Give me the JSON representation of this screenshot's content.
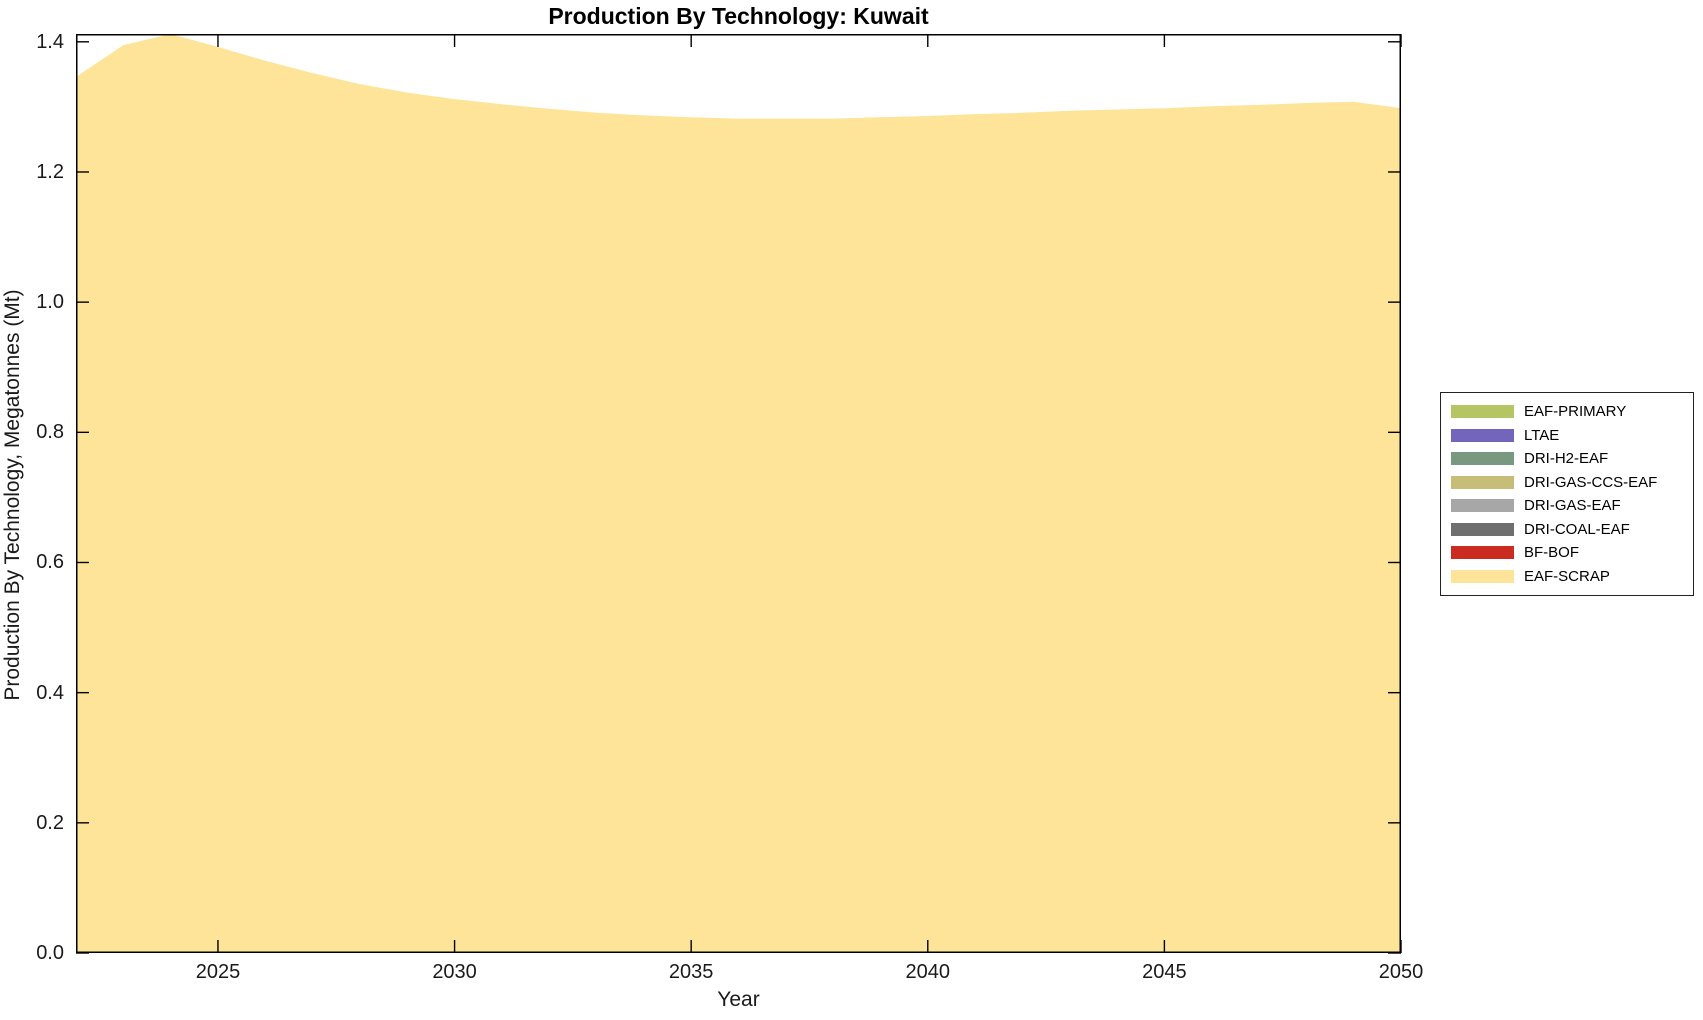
{
  "figure": {
    "title": "Production By Technology: Kuwait",
    "xlabel": "Year",
    "ylabel": "Production By Technology, Megatonnes (Mt)"
  },
  "chart_data": {
    "type": "area",
    "stacked": true,
    "title": "Production By Technology: Kuwait",
    "xlabel": "Year",
    "ylabel": "Production By Technology, Megatonnes (Mt)",
    "x": [
      2022,
      2023,
      2024,
      2025,
      2026,
      2027,
      2028,
      2029,
      2030,
      2031,
      2032,
      2033,
      2034,
      2035,
      2036,
      2037,
      2038,
      2039,
      2040,
      2041,
      2042,
      2043,
      2044,
      2045,
      2046,
      2047,
      2048,
      2049,
      2050
    ],
    "series": [
      {
        "name": "EAF-PRIMARY",
        "color": "#B6C563",
        "values": [
          0,
          0,
          0,
          0,
          0,
          0,
          0,
          0,
          0,
          0,
          0,
          0,
          0,
          0,
          0,
          0,
          0,
          0,
          0,
          0,
          0,
          0,
          0,
          0,
          0,
          0,
          0,
          0,
          0
        ]
      },
      {
        "name": "LTAE",
        "color": "#7365BC",
        "values": [
          0,
          0,
          0,
          0,
          0,
          0,
          0,
          0,
          0,
          0,
          0,
          0,
          0,
          0,
          0,
          0,
          0,
          0,
          0,
          0,
          0,
          0,
          0,
          0,
          0,
          0,
          0,
          0,
          0
        ]
      },
      {
        "name": "DRI-H2-EAF",
        "color": "#78997F",
        "values": [
          0,
          0,
          0,
          0,
          0,
          0,
          0,
          0,
          0,
          0,
          0,
          0,
          0,
          0,
          0,
          0,
          0,
          0,
          0,
          0,
          0,
          0,
          0,
          0,
          0,
          0,
          0,
          0,
          0
        ]
      },
      {
        "name": "DRI-GAS-CCS-EAF",
        "color": "#C6BE78",
        "values": [
          0,
          0,
          0,
          0,
          0,
          0,
          0,
          0,
          0,
          0,
          0,
          0,
          0,
          0,
          0,
          0,
          0,
          0,
          0,
          0,
          0,
          0,
          0,
          0,
          0,
          0,
          0,
          0,
          0
        ]
      },
      {
        "name": "DRI-GAS-EAF",
        "color": "#A7A7A7",
        "values": [
          0,
          0,
          0,
          0,
          0,
          0,
          0,
          0,
          0,
          0,
          0,
          0,
          0,
          0,
          0,
          0,
          0,
          0,
          0,
          0,
          0,
          0,
          0,
          0,
          0,
          0,
          0,
          0,
          0
        ]
      },
      {
        "name": "DRI-COAL-EAF",
        "color": "#6F6F6F",
        "values": [
          0,
          0,
          0,
          0,
          0,
          0,
          0,
          0,
          0,
          0,
          0,
          0,
          0,
          0,
          0,
          0,
          0,
          0,
          0,
          0,
          0,
          0,
          0,
          0,
          0,
          0,
          0,
          0,
          0
        ]
      },
      {
        "name": "BF-BOF",
        "color": "#CB2B20",
        "values": [
          0,
          0,
          0,
          0,
          0,
          0,
          0,
          0,
          0,
          0,
          0,
          0,
          0,
          0,
          0,
          0,
          0,
          0,
          0,
          0,
          0,
          0,
          0,
          0,
          0,
          0,
          0,
          0,
          0
        ]
      },
      {
        "name": "EAF-SCRAP",
        "color": "#FDE498",
        "values": [
          1.346,
          1.395,
          1.412,
          1.392,
          1.371,
          1.352,
          1.335,
          1.322,
          1.312,
          1.304,
          1.297,
          1.291,
          1.287,
          1.284,
          1.282,
          1.282,
          1.282,
          1.284,
          1.286,
          1.289,
          1.291,
          1.294,
          1.296,
          1.298,
          1.301,
          1.303,
          1.306,
          1.308,
          1.298
        ]
      }
    ],
    "xlim": [
      2022,
      2050
    ],
    "ylim": [
      0,
      1.412
    ],
    "xticks": [
      2025,
      2030,
      2035,
      2040,
      2045,
      2050
    ],
    "xtick_labels": [
      "2025",
      "2030",
      "2035",
      "2040",
      "2045",
      "2050"
    ],
    "yticks": [
      0.0,
      0.2,
      0.4,
      0.6,
      0.8,
      1.0,
      1.2,
      1.4
    ],
    "ytick_labels": [
      "0.0",
      "0.2",
      "0.4",
      "0.6",
      "0.8",
      "1.0",
      "1.2",
      "1.4"
    ],
    "grid": false,
    "legend_position": "right-outside",
    "axis_color": "#000000",
    "tick_label_color": "#1a1a1a"
  }
}
